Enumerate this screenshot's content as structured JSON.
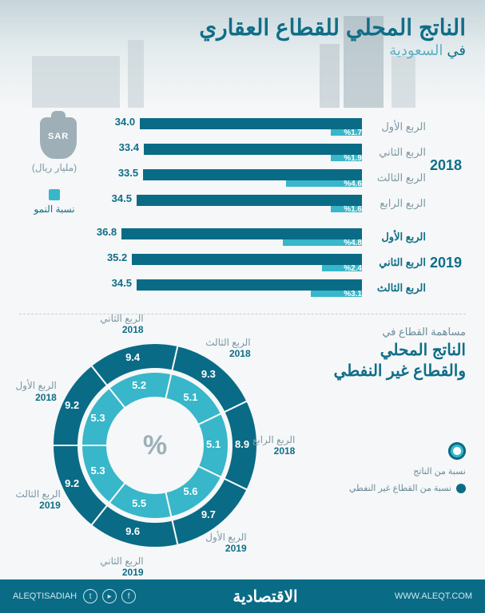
{
  "colors": {
    "primary": "#0a6b86",
    "accent": "#37b7c9",
    "muted": "#7b98a4",
    "heading": "#0f6e87",
    "bg": "#f5f7f8"
  },
  "header": {
    "title": "الناتج المحلي للقطاع العقاري",
    "subtitle_prefix": "في ",
    "subtitle_country": "السعودية"
  },
  "legend": {
    "unit_label": "(مليار ريال)",
    "sack_text": "SAR",
    "growth_label": "نسبة النمو"
  },
  "bars": {
    "type": "grouped-bar-horizontal",
    "value_min": 0,
    "value_max": 40,
    "main_color": "#0a6b86",
    "sub_color": "#37b7c9",
    "value_fontsize": 13,
    "groups": [
      {
        "year": "2018",
        "bold": false,
        "rows": [
          {
            "label": "الربع الأول",
            "value": 34.0,
            "growth": 1.7
          },
          {
            "label": "الربع الثاني",
            "value": 33.4,
            "growth": 1.9
          },
          {
            "label": "الربع الثالث",
            "value": 33.5,
            "growth": 4.6
          },
          {
            "label": "الربع الرابع",
            "value": 34.5,
            "growth": 1.6
          }
        ]
      },
      {
        "year": "2019",
        "bold": true,
        "rows": [
          {
            "label": "الربع الأول",
            "value": 36.8,
            "growth": 4.8
          },
          {
            "label": "الربع الثاني",
            "value": 35.2,
            "growth": 2.4
          },
          {
            "label": "الربع الثالث",
            "value": 34.5,
            "growth": 3.1
          }
        ]
      }
    ]
  },
  "donut": {
    "lead": "مساهمة القطاع في",
    "big_line1": "الناتج المحلي",
    "big_line2": "والقطاع غير النفطي",
    "center_symbol": "%",
    "type": "double-donut",
    "outer_color": "#0a6b86",
    "inner_color": "#37b7c9",
    "separator_color": "#f5f7f8",
    "legend": {
      "outer": "نسبة من الناتج",
      "inner": "نسبة من القطاع غير النفطي"
    },
    "segments": [
      {
        "label": "الربع الأول",
        "year": "2018",
        "outer": 9.2,
        "inner": 5.3,
        "angle": -75
      },
      {
        "label": "الربع الثاني",
        "year": "2018",
        "outer": 9.4,
        "inner": 5.2,
        "angle": -25
      },
      {
        "label": "الربع الثالث",
        "year": "2018",
        "outer": 9.3,
        "inner": 5.1,
        "angle": 30
      },
      {
        "label": "الربع الرابع",
        "year": "2018",
        "outer": 8.9,
        "inner": 5.1,
        "angle": 80
      },
      {
        "label": "الربع الأول",
        "year": "2019",
        "outer": 9.7,
        "inner": 5.6,
        "angle": 135
      },
      {
        "label": "الربع الثاني",
        "year": "2019",
        "outer": 9.6,
        "inner": 5.5,
        "angle": 185
      },
      {
        "label": "الربع الثالث",
        "year": "2019",
        "outer": 9.2,
        "inner": 5.3,
        "angle": 235
      }
    ]
  },
  "footer": {
    "handle": "ALEQTISADIAH",
    "brand": "الاقتصادية",
    "site": "WWW.ALEQT.COM"
  }
}
